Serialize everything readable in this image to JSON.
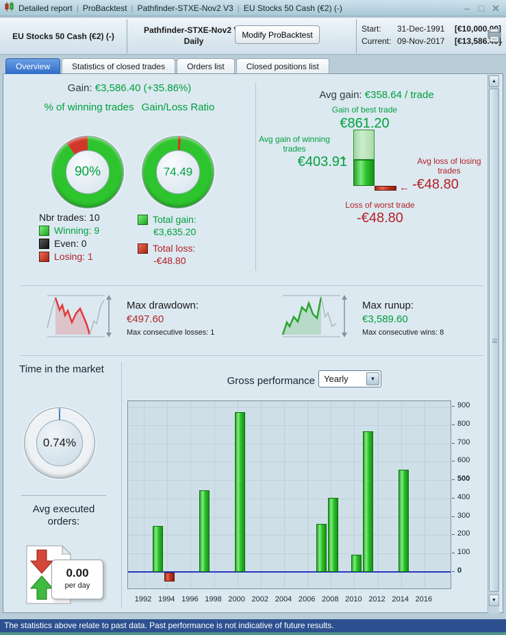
{
  "titlebar": {
    "items": [
      "Detailed report",
      "ProBacktest",
      "Pathfinder-STXE-Nov2 V3",
      "EU Stocks 50 Cash (€2) (-)"
    ],
    "controls": {
      "minimize": "–",
      "maximize": "□",
      "close": "✕"
    }
  },
  "header": {
    "instrument": "EU Stocks 50 Cash (€2) (-)",
    "system_name": "Pathfinder-STXE-Nov2 V3",
    "timeframe": "Daily",
    "modify_button": "Modify ProBacktest",
    "start_label": "Start:",
    "start_date": "31-Dec-1991",
    "start_value": "[€10,000.00]",
    "current_label": "Current:",
    "current_date": "09-Nov-2017",
    "current_value": "[€13,586.40]"
  },
  "tabs": {
    "overview": "Overview",
    "statistics": "Statistics of closed trades",
    "orders": "Orders list",
    "closed_positions": "Closed positions list"
  },
  "overview": {
    "gain_label": "Gain:",
    "gain_value": "€3,586.40 (+35.86%)",
    "winning_title": "% of winning trades",
    "winning_pct": "90%",
    "winning_pct_num": 90,
    "ratio_title": "Gain/Loss Ratio",
    "ratio_value": "74.49",
    "ratio_loss_pct_num": 1.3,
    "nbr_trades": "Nbr trades: 10",
    "winning": "Winning: 9",
    "even": "Even: 0",
    "losing": "Losing: 1",
    "total_gain_label": "Total gain:",
    "total_gain_value": "€3,635.20",
    "total_loss_label": "Total loss:",
    "total_loss_value": "-€48.80",
    "avg_gain_label": "Avg gain:",
    "avg_gain_value": "€358.64 / trade",
    "best_trade_label": "Gain of best trade",
    "best_trade_value": "€861.20",
    "best_trade_num": 861.2,
    "avg_win_label": "Avg gain of winning trades",
    "avg_win_value": "€403.91",
    "avg_win_num": 403.91,
    "avg_loss_label": "Avg loss of losing trades",
    "avg_loss_value": "-€48.80",
    "avg_loss_num": 48.8,
    "worst_trade_label": "Loss of worst trade",
    "worst_trade_value": "-€48.80"
  },
  "drawdown": {
    "title": "Max drawdown:",
    "value": "€497.60",
    "sub": "Max consecutive losses: 1"
  },
  "runup": {
    "title": "Max runup:",
    "value": "€3,589.60",
    "sub": "Max consecutive wins: 8"
  },
  "time_in_market": {
    "title": "Time in the market",
    "value": "0.74%",
    "pct_num": 0.74
  },
  "avg_orders": {
    "title": "Avg executed orders:",
    "value": "0.00",
    "unit": "per day"
  },
  "performance": {
    "title": "Gross performance",
    "period": "Yearly"
  },
  "chart_data": {
    "type": "bar",
    "title": "Gross performance (Yearly)",
    "x": [
      1993,
      1994,
      1997,
      2000,
      2007,
      2008,
      2010,
      2011,
      2014
    ],
    "values": [
      250,
      -48.8,
      445,
      870,
      260,
      405,
      95,
      765,
      555
    ],
    "xticks": [
      1992,
      1994,
      1996,
      1998,
      2000,
      2002,
      2004,
      2006,
      2008,
      2010,
      2012,
      2014,
      2016
    ],
    "yticks": [
      0,
      100,
      200,
      300,
      400,
      500,
      600,
      700,
      800,
      900
    ],
    "bold_yticks": [
      0,
      500
    ],
    "xlim": [
      1990.65,
      2018.35
    ],
    "ylim": [
      -97,
      930
    ],
    "grid": true,
    "legend_position": "none",
    "xlabel": "",
    "ylabel": ""
  },
  "statusbar": {
    "text": "The statistics above relate to past data. Past performance is not indicative of future results."
  },
  "icons": {
    "arrow_right": "→",
    "arrow_left": "←",
    "dropdown_arrow": "▼",
    "scroll_up": "▲",
    "scroll_down": "▼"
  },
  "colors": {
    "green_text": "#00a03c",
    "red_text": "#b42025",
    "donut_green": "#2ec42e",
    "donut_red": "#d2382a",
    "gauge_blue": "#3b7fc4",
    "zero_line": "#2a35c0",
    "tab_active": "#3a78d4",
    "status_bg": "#2d5190"
  }
}
